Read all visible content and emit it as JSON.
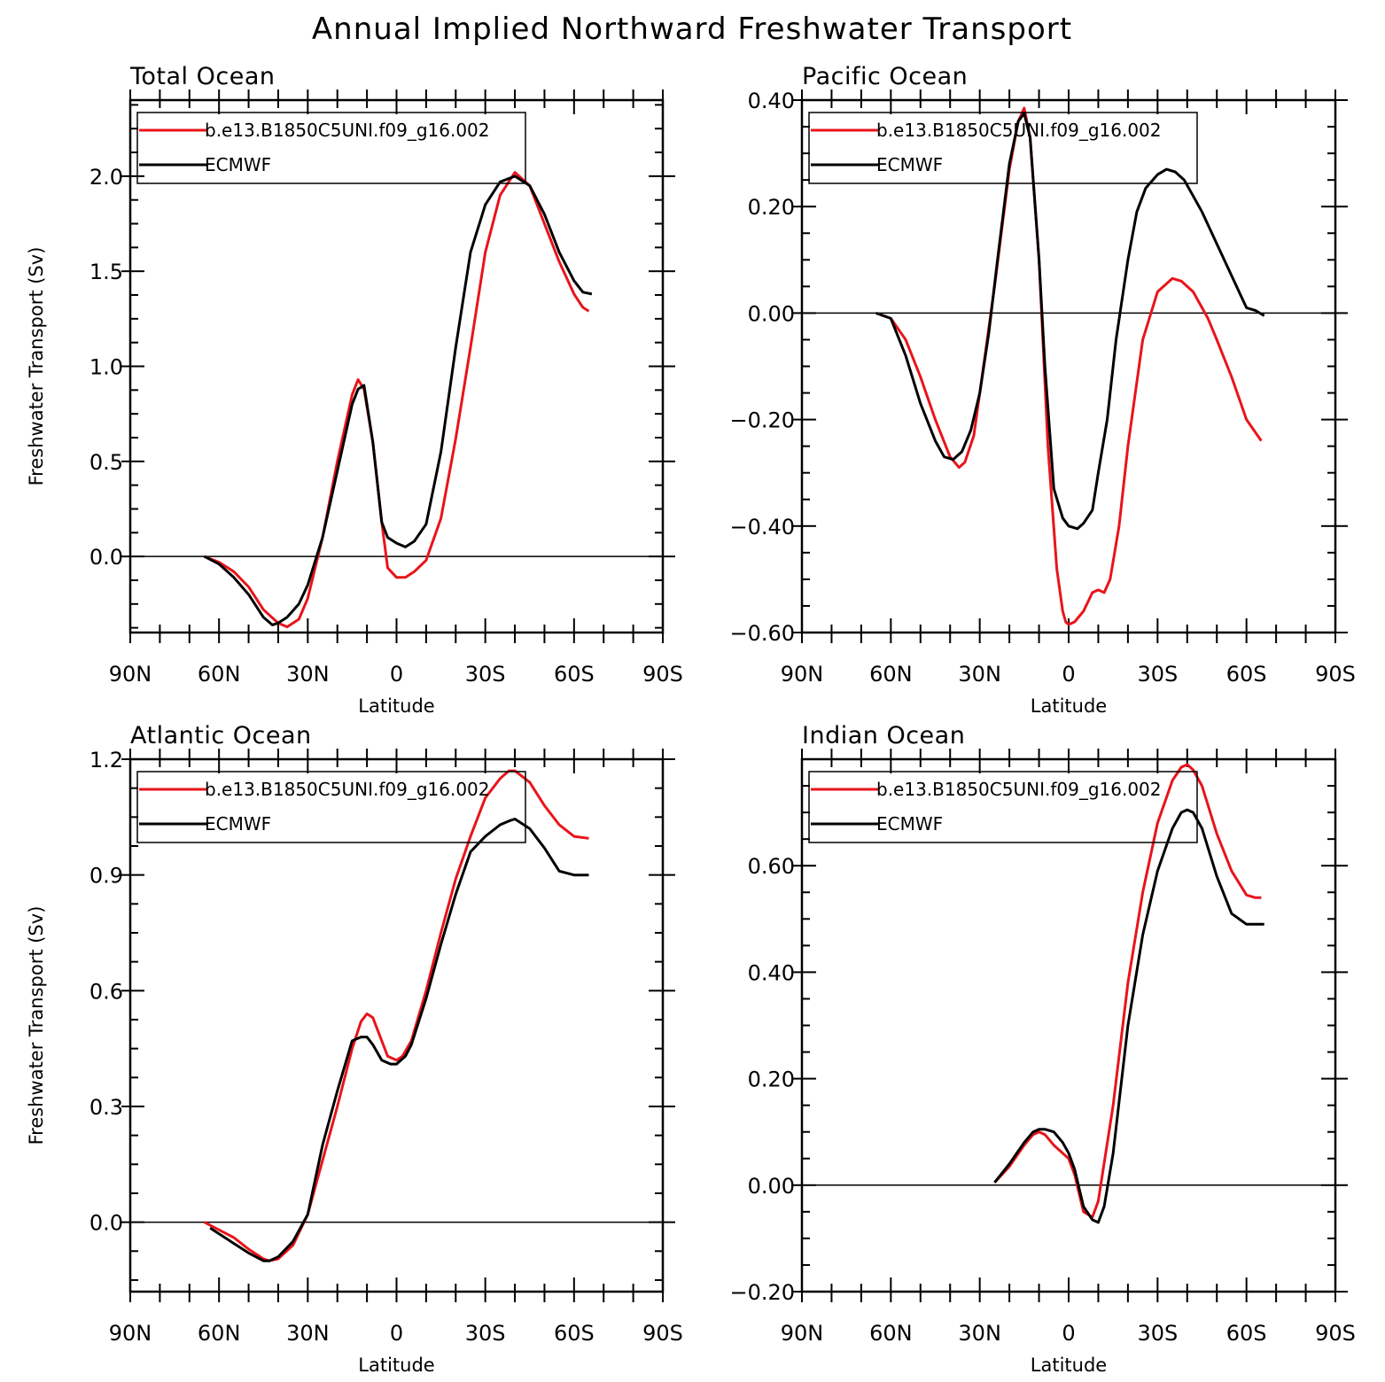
{
  "title": "Annual Implied Northward Freshwater Transport",
  "colors": {
    "model": "#e8141a",
    "reference": "#000000",
    "axes": "#000000",
    "background": "#ffffff"
  },
  "x_tick_labels": [
    "90N",
    "60N",
    "30N",
    "0",
    "30S",
    "60S",
    "90S"
  ],
  "chart_data": [
    {
      "type": "line",
      "title": "Total Ocean",
      "xlabel": "Latitude",
      "ylabel": "Freshwater Transport (Sv)",
      "xlim": [
        90,
        -90
      ],
      "ylim": [
        -0.4,
        2.4
      ],
      "yticks": [
        0.0,
        0.5,
        1.0,
        1.5,
        2.0
      ],
      "ytick_labels": [
        "0.0",
        "0.5",
        "1.0",
        "1.5",
        "2.0"
      ],
      "legend_position": "top-left",
      "series": [
        {
          "name": "b.e13.B1850C5UNI.f09_g16.002",
          "color": "#e8141a",
          "x": [
            65,
            60,
            55,
            50,
            45,
            40,
            37,
            33,
            30,
            25,
            20,
            15,
            13,
            11,
            8,
            5,
            3,
            0,
            -3,
            -6,
            -10,
            -15,
            -20,
            -25,
            -30,
            -35,
            -40,
            -45,
            -50,
            -55,
            -60,
            -63,
            -65
          ],
          "y": [
            0.0,
            -0.03,
            -0.08,
            -0.16,
            -0.28,
            -0.35,
            -0.37,
            -0.33,
            -0.22,
            0.1,
            0.5,
            0.85,
            0.93,
            0.88,
            0.6,
            0.18,
            -0.06,
            -0.11,
            -0.11,
            -0.08,
            -0.02,
            0.2,
            0.62,
            1.1,
            1.6,
            1.9,
            2.02,
            1.95,
            1.75,
            1.55,
            1.38,
            1.31,
            1.29
          ]
        },
        {
          "name": "ECMWF",
          "color": "#000000",
          "x": [
            65,
            60,
            55,
            50,
            45,
            42,
            40,
            37,
            33,
            30,
            25,
            20,
            15,
            13,
            11,
            8,
            5,
            3,
            0,
            -3,
            -6,
            -10,
            -15,
            -20,
            -25,
            -30,
            -35,
            -40,
            -45,
            -50,
            -55,
            -60,
            -63,
            -66
          ],
          "y": [
            0.0,
            -0.04,
            -0.11,
            -0.2,
            -0.32,
            -0.36,
            -0.35,
            -0.32,
            -0.25,
            -0.15,
            0.1,
            0.45,
            0.8,
            0.88,
            0.9,
            0.6,
            0.18,
            0.1,
            0.07,
            0.05,
            0.08,
            0.17,
            0.55,
            1.1,
            1.6,
            1.85,
            1.97,
            2.0,
            1.95,
            1.8,
            1.6,
            1.45,
            1.39,
            1.38
          ]
        }
      ]
    },
    {
      "type": "line",
      "title": "Pacific Ocean",
      "xlabel": "Latitude",
      "ylabel": "",
      "xlim": [
        90,
        -90
      ],
      "ylim": [
        -0.6,
        0.4
      ],
      "yticks": [
        -0.6,
        -0.4,
        -0.2,
        0.0,
        0.2,
        0.4
      ],
      "ytick_labels": [
        "−0.60",
        "−0.40",
        "−0.20",
        "0.00",
        "0.20",
        "0.40"
      ],
      "legend_position": "top-left",
      "series": [
        {
          "name": "b.e13.B1850C5UNI.f09_g16.002",
          "color": "#e8141a",
          "x": [
            65,
            60,
            55,
            50,
            45,
            40,
            37,
            35,
            32,
            30,
            25,
            20,
            17,
            15,
            13,
            10,
            7,
            4,
            2,
            1,
            0,
            -2,
            -5,
            -8,
            -10,
            -12,
            -14,
            -17,
            -20,
            -25,
            -30,
            -35,
            -38,
            -42,
            -47,
            -50,
            -55,
            -60,
            -65
          ],
          "y": [
            0.0,
            -0.01,
            -0.05,
            -0.12,
            -0.2,
            -0.27,
            -0.29,
            -0.28,
            -0.23,
            -0.15,
            0.05,
            0.27,
            0.36,
            0.385,
            0.33,
            0.1,
            -0.25,
            -0.48,
            -0.56,
            -0.58,
            -0.585,
            -0.58,
            -0.56,
            -0.525,
            -0.52,
            -0.525,
            -0.5,
            -0.4,
            -0.25,
            -0.05,
            0.04,
            0.065,
            0.06,
            0.04,
            -0.01,
            -0.05,
            -0.12,
            -0.2,
            -0.24
          ]
        },
        {
          "name": "ECMWF",
          "color": "#000000",
          "x": [
            65,
            60,
            55,
            50,
            45,
            42,
            39,
            36,
            33,
            30,
            27,
            24,
            20,
            17,
            15,
            13,
            10,
            8,
            5,
            2,
            0,
            -3,
            -5,
            -8,
            -10,
            -13,
            -16,
            -20,
            -23,
            -26,
            -30,
            -33,
            -36,
            -39,
            -42,
            -45,
            -50,
            -55,
            -60,
            -63,
            -66
          ],
          "y": [
            0.0,
            -0.01,
            -0.08,
            -0.17,
            -0.24,
            -0.27,
            -0.275,
            -0.26,
            -0.22,
            -0.15,
            -0.04,
            0.1,
            0.28,
            0.36,
            0.375,
            0.33,
            0.1,
            -0.1,
            -0.33,
            -0.385,
            -0.4,
            -0.405,
            -0.395,
            -0.37,
            -0.3,
            -0.2,
            -0.05,
            0.1,
            0.19,
            0.235,
            0.26,
            0.27,
            0.265,
            0.25,
            0.22,
            0.19,
            0.13,
            0.07,
            0.01,
            0.005,
            -0.005
          ]
        }
      ]
    },
    {
      "type": "line",
      "title": "Atlantic Ocean",
      "xlabel": "Latitude",
      "ylabel": "Freshwater Transport (Sv)",
      "xlim": [
        90,
        -90
      ],
      "ylim": [
        -0.18,
        1.2
      ],
      "yticks": [
        0.0,
        0.3,
        0.6,
        0.9,
        1.2
      ],
      "ytick_labels": [
        "0.0",
        "0.3",
        "0.6",
        "0.9",
        "1.2"
      ],
      "legend_position": "top-left",
      "series": [
        {
          "name": "b.e13.B1850C5UNI.f09_g16.002",
          "color": "#e8141a",
          "x": [
            65,
            60,
            55,
            50,
            45,
            43,
            40,
            35,
            30,
            25,
            20,
            15,
            12,
            10,
            8,
            5,
            3,
            0,
            -2,
            -5,
            -10,
            -15,
            -20,
            -25,
            -30,
            -35,
            -38,
            -40,
            -45,
            -50,
            -55,
            -60,
            -65
          ],
          "y": [
            0.0,
            -0.02,
            -0.04,
            -0.07,
            -0.095,
            -0.1,
            -0.095,
            -0.06,
            0.02,
            0.16,
            0.3,
            0.45,
            0.52,
            0.54,
            0.53,
            0.47,
            0.43,
            0.42,
            0.43,
            0.47,
            0.6,
            0.75,
            0.89,
            1.0,
            1.1,
            1.15,
            1.17,
            1.17,
            1.14,
            1.08,
            1.03,
            1.0,
            0.995
          ]
        },
        {
          "name": "ECMWF",
          "color": "#000000",
          "x": [
            63,
            60,
            55,
            50,
            45,
            43,
            40,
            35,
            30,
            25,
            20,
            15,
            12,
            10,
            8,
            5,
            2,
            0,
            -3,
            -5,
            -10,
            -15,
            -20,
            -25,
            -30,
            -35,
            -38,
            -40,
            -45,
            -50,
            -55,
            -60,
            -65
          ],
          "y": [
            -0.015,
            -0.03,
            -0.055,
            -0.08,
            -0.1,
            -0.1,
            -0.09,
            -0.05,
            0.02,
            0.2,
            0.34,
            0.47,
            0.48,
            0.48,
            0.46,
            0.42,
            0.41,
            0.41,
            0.43,
            0.46,
            0.58,
            0.72,
            0.85,
            0.96,
            1.0,
            1.03,
            1.04,
            1.045,
            1.02,
            0.97,
            0.91,
            0.9,
            0.9
          ]
        }
      ]
    },
    {
      "type": "line",
      "title": "Indian Ocean",
      "xlabel": "Latitude",
      "ylabel": "",
      "xlim": [
        90,
        -90
      ],
      "ylim": [
        -0.2,
        0.8
      ],
      "yticks": [
        -0.2,
        0.0,
        0.2,
        0.4,
        0.6
      ],
      "ytick_labels": [
        "−0.20",
        "0.00",
        "0.20",
        "0.40",
        "0.60"
      ],
      "legend_position": "top-left",
      "series": [
        {
          "name": "b.e13.B1850C5UNI.f09_g16.002",
          "color": "#e8141a",
          "x": [
            25,
            20,
            15,
            12,
            10,
            8,
            5,
            2,
            0,
            -2,
            -5,
            -8,
            -10,
            -15,
            -20,
            -25,
            -30,
            -35,
            -38,
            -40,
            -42,
            -45,
            -50,
            -55,
            -60,
            -63,
            -65
          ],
          "y": [
            0.005,
            0.035,
            0.075,
            0.095,
            0.1,
            0.095,
            0.075,
            0.06,
            0.05,
            0.02,
            -0.05,
            -0.06,
            -0.03,
            0.15,
            0.38,
            0.55,
            0.68,
            0.76,
            0.785,
            0.79,
            0.78,
            0.75,
            0.66,
            0.59,
            0.545,
            0.54,
            0.54
          ]
        },
        {
          "name": "ECMWF",
          "color": "#000000",
          "x": [
            25,
            20,
            15,
            12,
            10,
            8,
            5,
            2,
            0,
            -2,
            -5,
            -8,
            -10,
            -12,
            -15,
            -20,
            -25,
            -30,
            -35,
            -38,
            -40,
            -42,
            -45,
            -50,
            -55,
            -60,
            -63,
            -66
          ],
          "y": [
            0.005,
            0.04,
            0.08,
            0.1,
            0.105,
            0.105,
            0.1,
            0.08,
            0.06,
            0.03,
            -0.04,
            -0.065,
            -0.07,
            -0.04,
            0.06,
            0.3,
            0.47,
            0.59,
            0.67,
            0.7,
            0.705,
            0.7,
            0.67,
            0.58,
            0.51,
            0.49,
            0.49,
            0.49
          ]
        }
      ]
    }
  ]
}
